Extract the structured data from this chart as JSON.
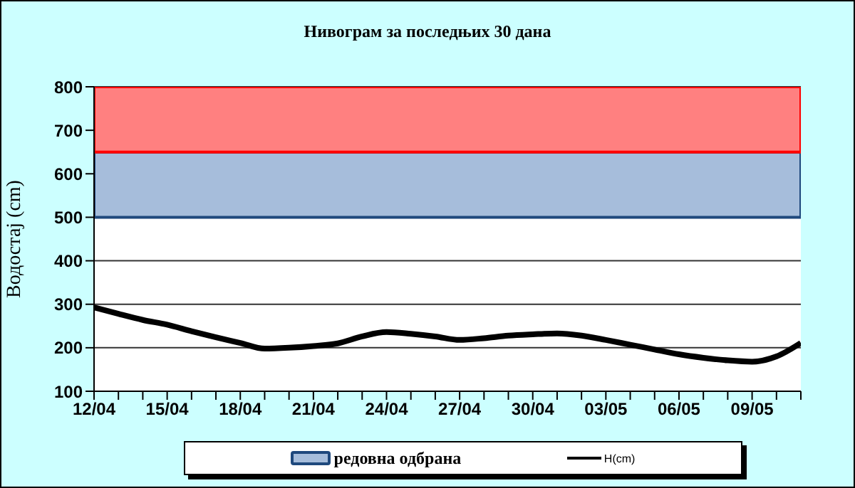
{
  "chart_data": {
    "type": "line",
    "title": "Нивограм за последњих 30 дана",
    "ylabel": "Водостај (cm)",
    "categories": [
      "12/04",
      null,
      null,
      "15/04",
      null,
      null,
      "18/04",
      null,
      null,
      "21/04",
      null,
      null,
      "24/04",
      null,
      null,
      "27/04",
      null,
      null,
      "30/04",
      null,
      null,
      "03/05",
      null,
      null,
      "06/05",
      null,
      null,
      "09/05",
      null,
      null
    ],
    "series": [
      {
        "name": "H(cm)",
        "color": "#000000",
        "values": [
          293,
          278,
          264,
          253,
          238,
          224,
          211,
          198,
          200,
          204,
          210,
          226,
          236,
          232,
          226,
          218,
          222,
          228,
          231,
          233,
          228,
          218,
          207,
          196,
          185,
          177,
          171,
          168,
          180,
          211
        ]
      }
    ],
    "ylim": [
      100,
      800
    ],
    "yticks": [
      100,
      200,
      300,
      400,
      500,
      600,
      700,
      800
    ],
    "grid": "y",
    "legend": "bottom",
    "marker": "none",
    "line_style": "solid",
    "bands": [
      {
        "axis": "y",
        "from": 500,
        "to": 650,
        "label": "редовна одбрана",
        "color": "#a6bddb"
      },
      {
        "axis": "y",
        "from": 650,
        "to": 800,
        "color": "#ff8080"
      }
    ]
  }
}
